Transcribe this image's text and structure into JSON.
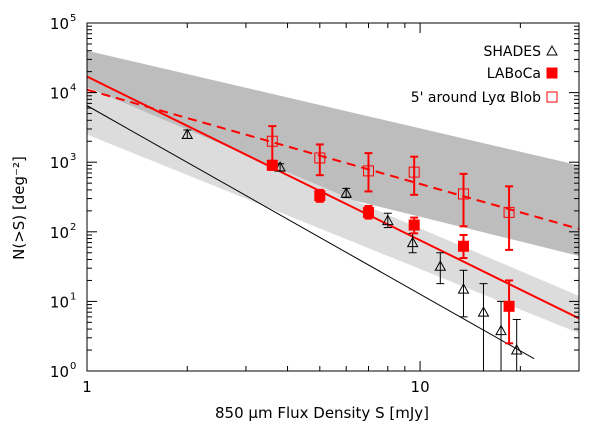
{
  "chart_data": {
    "type": "scatter",
    "xlabel": "850 μm Flux Density S [mJy]",
    "ylabel": "N(>S) [deg⁻²]",
    "x_scale": "log",
    "y_scale": "log",
    "xlim": [
      1,
      30
    ],
    "ylim": [
      1,
      100000
    ],
    "x_ticks": [
      {
        "v": 1,
        "label": "1"
      },
      {
        "v": 10,
        "label": "10"
      }
    ],
    "y_ticks": [
      {
        "v": 1,
        "base": "10",
        "exp": "0"
      },
      {
        "v": 10,
        "base": "10",
        "exp": "1"
      },
      {
        "v": 100,
        "base": "10",
        "exp": "2"
      },
      {
        "v": 1000,
        "base": "10",
        "exp": "3"
      },
      {
        "v": 10000,
        "base": "10",
        "exp": "4"
      },
      {
        "v": 100000,
        "base": "10",
        "exp": "5"
      }
    ],
    "grid": false,
    "legend_position": "top-right",
    "legend": [
      {
        "label": "SHADES",
        "marker": "open-triangle",
        "color": "#000000"
      },
      {
        "label": "LABoCa",
        "marker": "filled-square",
        "color": "#ff0000"
      },
      {
        "label": "5' around Lyα Blob",
        "marker": "open-square",
        "color": "#ff0000"
      }
    ],
    "bands": [
      {
        "fill": "#bdbdbd",
        "x": [
          1,
          30
        ],
        "upper": [
          40000,
          900
        ],
        "lower": [
          2500,
          45
        ]
      },
      {
        "fill": "#dcdcdc",
        "x": [
          1,
          30
        ],
        "upper": [
          12000,
          12
        ],
        "lower": [
          2500,
          3.5
        ]
      }
    ],
    "lines": [
      {
        "series": "SHADES fit",
        "color": "#000000",
        "width": 1,
        "dash": false,
        "x": [
          1,
          22
        ],
        "y": [
          6500,
          1.5
        ]
      },
      {
        "series": "LABoCa fit",
        "color": "#ff0000",
        "width": 2,
        "dash": false,
        "x": [
          1,
          30
        ],
        "y": [
          17000,
          5.7
        ]
      },
      {
        "series": "Lyα Blob fit",
        "color": "#ff0000",
        "width": 2,
        "dash": true,
        "x": [
          1,
          30
        ],
        "y": [
          11000,
          110
        ]
      }
    ],
    "series": [
      {
        "name": "SHADES",
        "marker": "open-triangle",
        "color": "#000000",
        "points": [
          {
            "x": 2.0,
            "y": 2500,
            "lo": 2200,
            "hi": 2900
          },
          {
            "x": 3.8,
            "y": 850,
            "lo": 750,
            "hi": 950
          },
          {
            "x": 6.0,
            "y": 360,
            "lo": 310,
            "hi": 420
          },
          {
            "x": 8.0,
            "y": 145,
            "lo": 115,
            "hi": 185
          },
          {
            "x": 9.5,
            "y": 70,
            "lo": 50,
            "hi": 95
          },
          {
            "x": 11.5,
            "y": 32,
            "lo": 18,
            "hi": 50
          },
          {
            "x": 13.5,
            "y": 15,
            "lo": 6,
            "hi": 28
          },
          {
            "x": 15.5,
            "y": 7,
            "lo": 1,
            "hi": 18
          },
          {
            "x": 17.5,
            "y": 3.8,
            "lo": 1,
            "hi": 10
          },
          {
            "x": 19.5,
            "y": 2.0,
            "lo": 1,
            "hi": 5.5
          }
        ]
      },
      {
        "name": "LABoCa",
        "marker": "filled-square",
        "color": "#ff0000",
        "points": [
          {
            "x": 3.6,
            "y": 900,
            "lo": 780,
            "hi": 1050
          },
          {
            "x": 5.0,
            "y": 330,
            "lo": 270,
            "hi": 400
          },
          {
            "x": 7.0,
            "y": 190,
            "lo": 155,
            "hi": 235
          },
          {
            "x": 9.6,
            "y": 125,
            "lo": 95,
            "hi": 160
          },
          {
            "x": 13.5,
            "y": 62,
            "lo": 42,
            "hi": 90
          },
          {
            "x": 18.5,
            "y": 8.5,
            "lo": 2.5,
            "hi": 20
          }
        ]
      },
      {
        "name": "5' around Lyα Blob",
        "marker": "open-square",
        "color": "#ff0000",
        "points": [
          {
            "x": 3.6,
            "y": 2000,
            "lo": 1000,
            "hi": 3300
          },
          {
            "x": 5.0,
            "y": 1150,
            "lo": 650,
            "hi": 1800
          },
          {
            "x": 7.0,
            "y": 750,
            "lo": 380,
            "hi": 1350
          },
          {
            "x": 9.6,
            "y": 720,
            "lo": 340,
            "hi": 1200
          },
          {
            "x": 13.5,
            "y": 350,
            "lo": 120,
            "hi": 680
          },
          {
            "x": 18.5,
            "y": 190,
            "lo": 55,
            "hi": 450
          }
        ]
      }
    ]
  }
}
